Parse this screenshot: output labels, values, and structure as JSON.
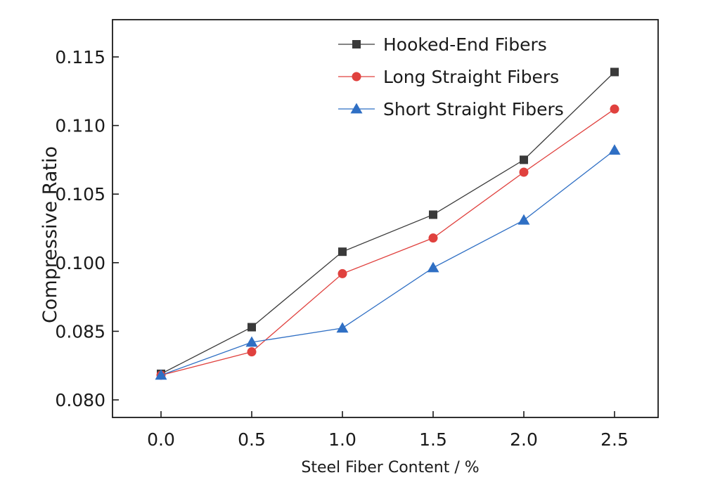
{
  "chart_data": {
    "type": "line",
    "title": "",
    "xlabel": "Steel Fiber Content / %",
    "ylabel": "Compressive Ratio",
    "x": [
      0.0,
      0.5,
      1.0,
      1.5,
      2.0,
      2.5
    ],
    "x_tick_labels": [
      "0.0",
      "0.5",
      "1.0",
      "1.5",
      "2.0",
      "2.5"
    ],
    "y_tick_labels": [
      "0.080",
      "0.085",
      "0.100",
      "0.105",
      "0.110",
      "0.115"
    ],
    "legend_position": "top-right",
    "grid": false,
    "series": [
      {
        "name": "Hooked-End Fibers",
        "marker": "square",
        "color": "#3a3a3a",
        "values": [
          0.0819,
          0.0859,
          0.1008,
          0.1035,
          0.1075,
          0.1139
        ]
      },
      {
        "name": "Long Straight Fibers",
        "marker": "circle",
        "color": "#e0413e",
        "values": [
          0.0818,
          0.0835,
          0.0976,
          0.1018,
          0.1066,
          0.1112
        ]
      },
      {
        "name": "Short Straight Fibers",
        "marker": "triangle",
        "color": "#2f6fc4",
        "values": [
          0.0818,
          0.0842,
          0.0857,
          0.0989,
          0.1031,
          0.1082
        ]
      }
    ]
  }
}
